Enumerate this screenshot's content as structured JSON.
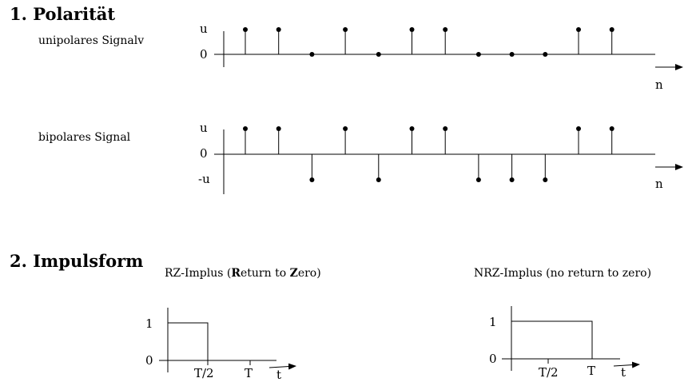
{
  "section1": {
    "heading": "1. Polarität",
    "unipolar": {
      "label": "unipolares Signalv",
      "y_labels": [
        "u",
        "0"
      ],
      "axis_label": "n",
      "values": [
        1,
        1,
        0,
        1,
        0,
        1,
        1,
        0,
        0,
        0,
        1,
        1
      ]
    },
    "bipolar": {
      "label": "bipolares Signal",
      "y_labels": [
        "u",
        "0",
        "-u"
      ],
      "axis_label": "n",
      "values": [
        1,
        1,
        -1,
        1,
        -1,
        1,
        1,
        -1,
        -1,
        -1,
        1,
        1
      ]
    }
  },
  "section2": {
    "heading": "2. Impulsform",
    "rz": {
      "title_prefix": "RZ-Implus (",
      "title_R": "R",
      "title_mid": "eturn to ",
      "title_Z": "Z",
      "title_suffix": "ero)",
      "y_labels": [
        "1",
        "0"
      ],
      "x_labels": [
        "T/2",
        "T"
      ],
      "axis_label": "t",
      "pulse_width": 0.5
    },
    "nrz": {
      "title": "NRZ-Implus (no return to zero)",
      "y_labels": [
        "1",
        "0"
      ],
      "x_labels": [
        "T/2",
        "T"
      ],
      "axis_label": "t",
      "pulse_width": 1.0
    }
  }
}
